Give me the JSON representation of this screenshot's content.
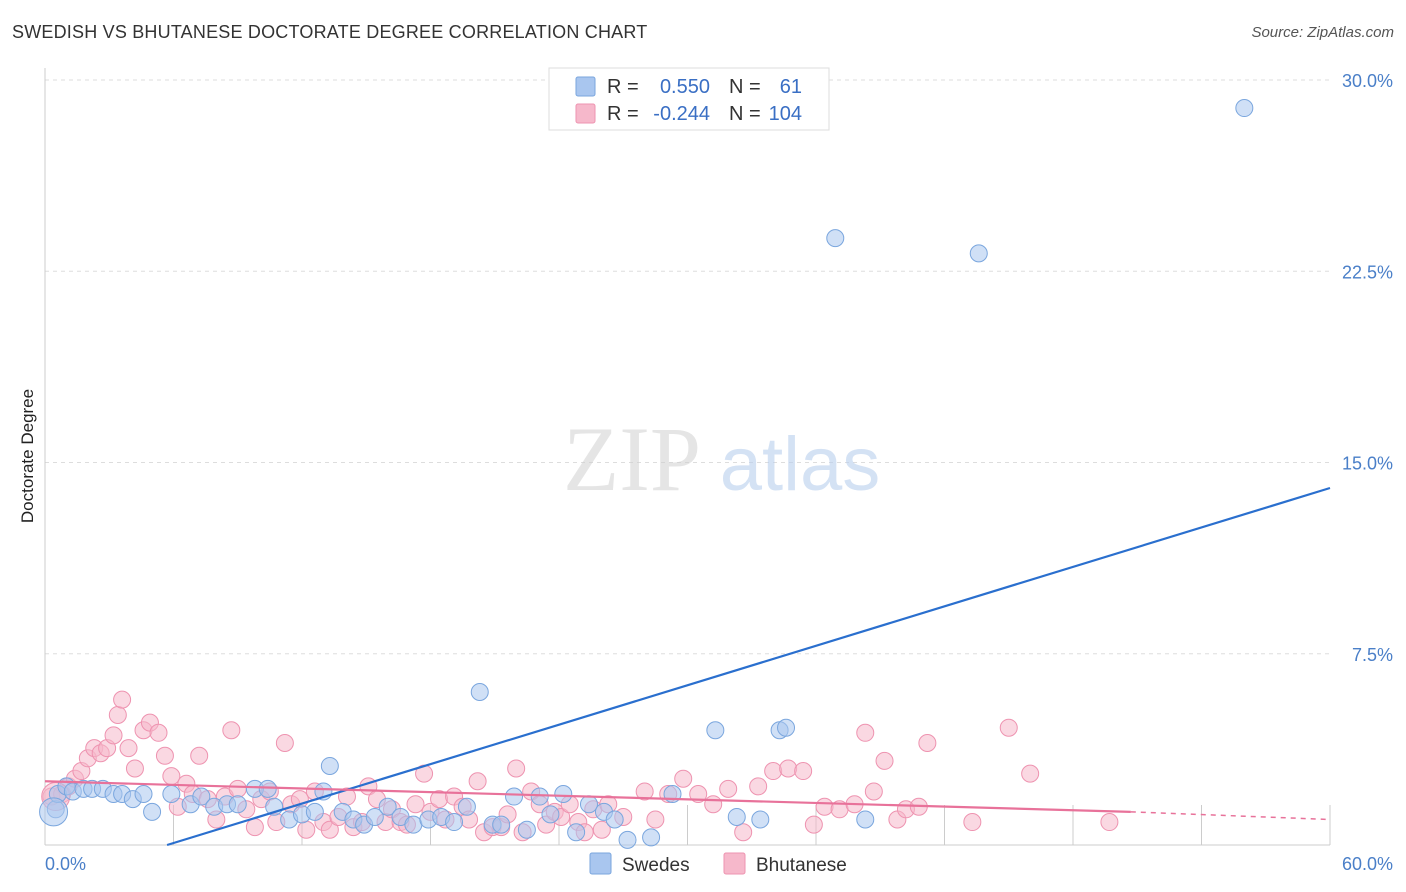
{
  "title": "SWEDISH VS BHUTANESE DOCTORATE DEGREE CORRELATION CHART",
  "source": "Source: ZipAtlas.com",
  "watermark": {
    "zip": "ZIP",
    "atlas": "atlas"
  },
  "colors": {
    "swedes_fill": "#a9c6ef",
    "swedes_stroke": "#7aa6de",
    "swedes_line": "#2a6fce",
    "bhutanese_fill": "#f6b8cb",
    "bhutanese_stroke": "#ee93b0",
    "bhutanese_line": "#e8729a",
    "grid": "#dddddd",
    "tick_label": "#4a7fc8"
  },
  "legend": {
    "r_label": "R =",
    "n_label": "N =",
    "rows": [
      {
        "series": "Swedes",
        "r": "0.550",
        "n": "61"
      },
      {
        "series": "Bhutanese",
        "r": "-0.244",
        "n": "104"
      }
    ]
  },
  "chart_data": {
    "type": "scatter",
    "title": "SWEDISH VS BHUTANESE DOCTORATE DEGREE CORRELATION CHART",
    "xlabel": "",
    "ylabel": "Doctorate Degree",
    "xlim": [
      0,
      60
    ],
    "ylim": [
      0,
      30
    ],
    "x_tick_labels": [
      "0.0%",
      "60.0%"
    ],
    "y_ticks": [
      7.5,
      15,
      22.5,
      30
    ],
    "y_tick_labels": [
      "7.5%",
      "15.0%",
      "22.5%",
      "30.0%"
    ],
    "legend_position": "top-center",
    "series": [
      {
        "name": "Swedes",
        "r": 0.55,
        "n": 61,
        "trend": {
          "x": [
            5.7,
            60
          ],
          "y": [
            -0.9,
            14.0
          ]
        },
        "points": [
          [
            0.5,
            1.4
          ],
          [
            0.6,
            2.0
          ],
          [
            1.0,
            2.3
          ],
          [
            1.3,
            2.1
          ],
          [
            1.8,
            2.2
          ],
          [
            2.2,
            2.2
          ],
          [
            2.7,
            2.2
          ],
          [
            3.2,
            2.0
          ],
          [
            3.6,
            2.0
          ],
          [
            4.1,
            1.8
          ],
          [
            4.6,
            2.0
          ],
          [
            5.9,
            2.0
          ],
          [
            5.0,
            1.3
          ],
          [
            6.8,
            1.6
          ],
          [
            7.3,
            1.9
          ],
          [
            7.9,
            1.5
          ],
          [
            8.5,
            1.6
          ],
          [
            9.0,
            1.6
          ],
          [
            9.8,
            2.2
          ],
          [
            10.4,
            2.2
          ],
          [
            10.7,
            1.5
          ],
          [
            11.4,
            1.0
          ],
          [
            12.0,
            1.2
          ],
          [
            12.6,
            1.3
          ],
          [
            13.0,
            2.1
          ],
          [
            13.3,
            3.1
          ],
          [
            13.9,
            1.3
          ],
          [
            14.4,
            1.0
          ],
          [
            14.9,
            0.8
          ],
          [
            15.4,
            1.1
          ],
          [
            16.0,
            1.5
          ],
          [
            16.6,
            1.1
          ],
          [
            17.2,
            0.8
          ],
          [
            17.9,
            1.0
          ],
          [
            18.5,
            1.1
          ],
          [
            19.1,
            0.9
          ],
          [
            19.7,
            1.5
          ],
          [
            20.3,
            6.0
          ],
          [
            20.9,
            0.8
          ],
          [
            21.3,
            0.8
          ],
          [
            21.9,
            1.9
          ],
          [
            22.5,
            0.6
          ],
          [
            23.1,
            1.9
          ],
          [
            23.6,
            1.2
          ],
          [
            24.2,
            2.0
          ],
          [
            24.8,
            0.5
          ],
          [
            25.4,
            1.6
          ],
          [
            26.1,
            1.3
          ],
          [
            26.6,
            1.0
          ],
          [
            27.2,
            0.2
          ],
          [
            28.3,
            0.3
          ],
          [
            29.3,
            2.0
          ],
          [
            31.3,
            4.5
          ],
          [
            32.3,
            1.1
          ],
          [
            33.4,
            1.0
          ],
          [
            34.3,
            4.5
          ],
          [
            34.6,
            4.6
          ],
          [
            36.9,
            23.8
          ],
          [
            38.3,
            1.0
          ],
          [
            43.6,
            23.2
          ],
          [
            56.0,
            28.9
          ]
        ]
      },
      {
        "name": "Bhutanese",
        "r": -0.244,
        "n": 104,
        "trend": {
          "x": [
            0,
            50.7
          ],
          "y": [
            2.5,
            1.3
          ]
        },
        "trend_dashed": {
          "x": [
            50.7,
            60
          ],
          "y": [
            1.3,
            1.0
          ]
        },
        "points": [
          [
            0.3,
            1.9
          ],
          [
            0.8,
            2.0
          ],
          [
            1.1,
            2.3
          ],
          [
            1.4,
            2.6
          ],
          [
            1.7,
            2.9
          ],
          [
            2.0,
            3.4
          ],
          [
            2.3,
            3.8
          ],
          [
            2.6,
            3.6
          ],
          [
            2.9,
            3.8
          ],
          [
            3.2,
            4.3
          ],
          [
            3.4,
            5.1
          ],
          [
            3.6,
            5.7
          ],
          [
            3.9,
            3.8
          ],
          [
            4.2,
            3.0
          ],
          [
            4.6,
            4.5
          ],
          [
            4.9,
            4.8
          ],
          [
            5.3,
            4.4
          ],
          [
            5.6,
            3.5
          ],
          [
            5.9,
            2.7
          ],
          [
            6.2,
            1.5
          ],
          [
            6.6,
            2.4
          ],
          [
            6.9,
            2.0
          ],
          [
            7.2,
            3.5
          ],
          [
            7.6,
            1.8
          ],
          [
            8.0,
            1.0
          ],
          [
            8.4,
            1.9
          ],
          [
            8.7,
            4.5
          ],
          [
            9.0,
            2.2
          ],
          [
            9.4,
            1.4
          ],
          [
            9.8,
            0.7
          ],
          [
            10.1,
            1.8
          ],
          [
            10.5,
            2.1
          ],
          [
            10.8,
            0.9
          ],
          [
            11.2,
            4.0
          ],
          [
            11.5,
            1.6
          ],
          [
            11.9,
            1.8
          ],
          [
            12.2,
            0.6
          ],
          [
            12.6,
            2.1
          ],
          [
            13.0,
            0.9
          ],
          [
            13.3,
            0.6
          ],
          [
            13.7,
            1.1
          ],
          [
            14.1,
            1.9
          ],
          [
            14.4,
            0.7
          ],
          [
            14.8,
            0.9
          ],
          [
            15.1,
            2.3
          ],
          [
            15.5,
            1.8
          ],
          [
            15.9,
            0.9
          ],
          [
            16.2,
            1.4
          ],
          [
            16.6,
            0.9
          ],
          [
            16.9,
            0.8
          ],
          [
            17.3,
            1.6
          ],
          [
            17.7,
            2.8
          ],
          [
            18.0,
            1.3
          ],
          [
            18.4,
            1.8
          ],
          [
            18.7,
            1.0
          ],
          [
            19.1,
            1.9
          ],
          [
            19.5,
            1.5
          ],
          [
            19.8,
            1.0
          ],
          [
            20.2,
            2.5
          ],
          [
            20.5,
            0.5
          ],
          [
            20.9,
            0.7
          ],
          [
            21.3,
            0.7
          ],
          [
            21.6,
            1.2
          ],
          [
            22.0,
            3.0
          ],
          [
            22.3,
            0.5
          ],
          [
            22.7,
            2.1
          ],
          [
            23.1,
            1.6
          ],
          [
            23.4,
            0.8
          ],
          [
            23.8,
            1.3
          ],
          [
            24.1,
            1.1
          ],
          [
            24.5,
            1.6
          ],
          [
            24.9,
            0.9
          ],
          [
            25.2,
            0.5
          ],
          [
            25.6,
            1.4
          ],
          [
            26.0,
            0.6
          ],
          [
            26.3,
            1.6
          ],
          [
            27.0,
            1.1
          ],
          [
            28.0,
            2.1
          ],
          [
            28.5,
            1.0
          ],
          [
            29.1,
            2.0
          ],
          [
            29.8,
            2.6
          ],
          [
            30.5,
            2.0
          ],
          [
            31.2,
            1.6
          ],
          [
            31.9,
            2.2
          ],
          [
            32.6,
            0.5
          ],
          [
            33.3,
            2.3
          ],
          [
            34.0,
            2.9
          ],
          [
            34.7,
            3.0
          ],
          [
            35.4,
            2.9
          ],
          [
            35.9,
            0.8
          ],
          [
            36.4,
            1.5
          ],
          [
            37.1,
            1.4
          ],
          [
            37.8,
            1.6
          ],
          [
            38.3,
            4.4
          ],
          [
            38.7,
            2.1
          ],
          [
            39.2,
            3.3
          ],
          [
            39.8,
            1.0
          ],
          [
            40.2,
            1.4
          ],
          [
            41.2,
            4.0
          ],
          [
            45.0,
            4.6
          ],
          [
            46.0,
            2.8
          ],
          [
            49.7,
            0.9
          ],
          [
            40.8,
            1.5
          ],
          [
            43.3,
            0.9
          ]
        ]
      }
    ]
  }
}
